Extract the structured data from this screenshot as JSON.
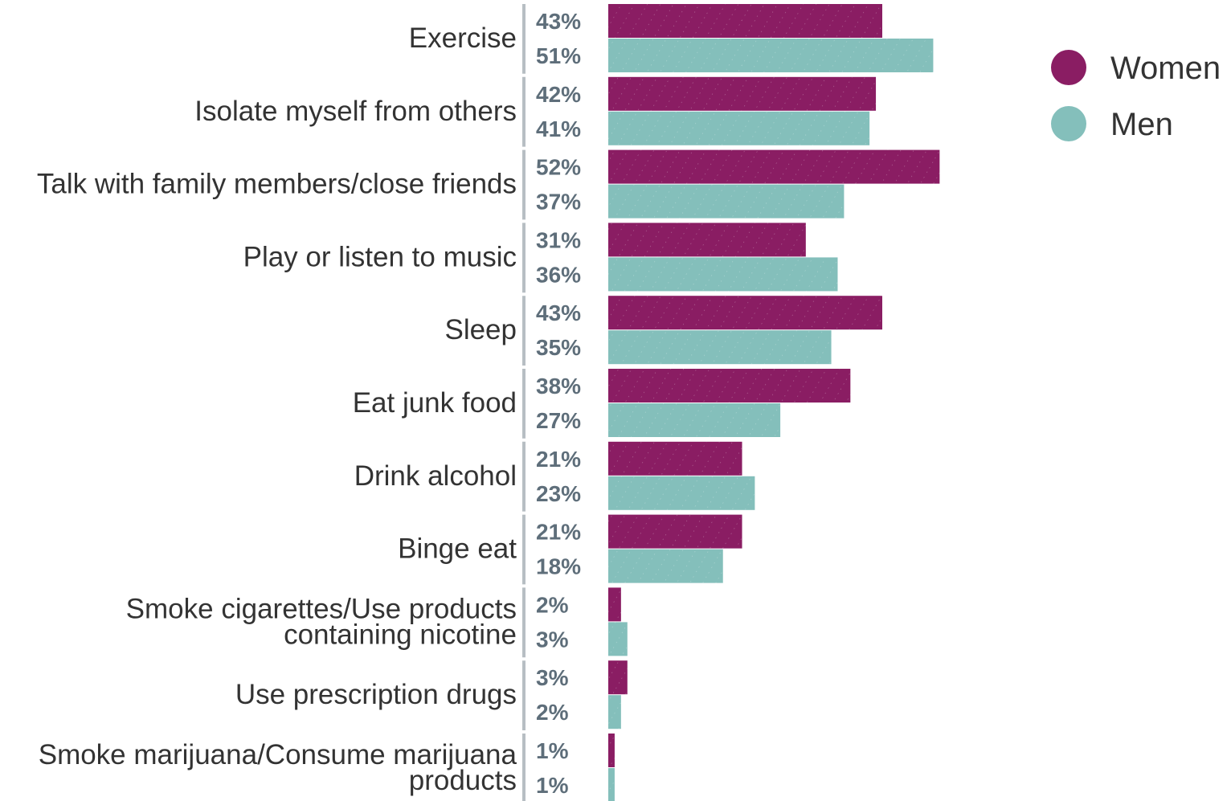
{
  "colors": {
    "women": "#8a1d63",
    "men": "#84bfbb",
    "value_text": "#5e6e7a",
    "label_text": "#333333",
    "separator": "#b7bec3"
  },
  "legend": [
    {
      "name": "Women",
      "color_key": "women"
    },
    {
      "name": "Men",
      "color_key": "men"
    }
  ],
  "chart_data": {
    "type": "bar",
    "orientation": "horizontal",
    "title": "",
    "xlabel": "",
    "ylabel": "",
    "xlim": [
      0,
      100
    ],
    "grid": false,
    "legend_position": "top-right",
    "value_suffix": "%",
    "categories": [
      [
        "Exercise"
      ],
      [
        "Isolate myself from others"
      ],
      [
        "Talk with family members/close friends"
      ],
      [
        "Play or listen to music"
      ],
      [
        "Sleep"
      ],
      [
        "Eat junk food"
      ],
      [
        "Drink alcohol"
      ],
      [
        "Binge eat"
      ],
      [
        "Smoke cigarettes/Use products",
        "containing nicotine"
      ],
      [
        "Use prescription drugs"
      ],
      [
        "Smoke marijuana/Consume marijuana",
        "products"
      ]
    ],
    "series": [
      {
        "name": "Women",
        "values": [
          43,
          42,
          52,
          31,
          43,
          38,
          21,
          21,
          2,
          3,
          1
        ]
      },
      {
        "name": "Men",
        "values": [
          51,
          41,
          37,
          36,
          35,
          27,
          23,
          18,
          3,
          2,
          1
        ]
      }
    ]
  }
}
